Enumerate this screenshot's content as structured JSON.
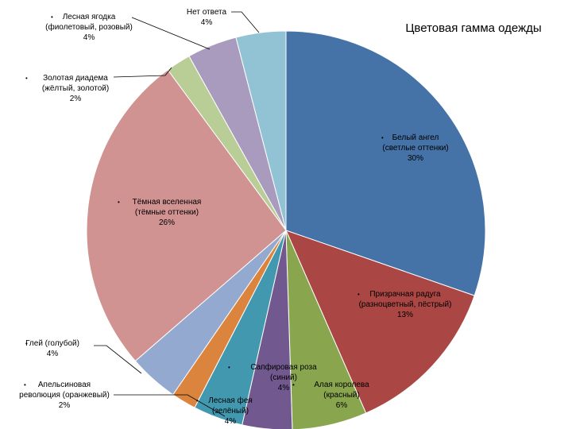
{
  "chart_data": {
    "type": "pie",
    "title": "Цветовая гамма одежды",
    "legend": "none",
    "slices": [
      {
        "label_lines": [
          "Белый ангел",
          "(светлые оттенки)",
          "30%"
        ],
        "value": 30,
        "color": "#4572a7"
      },
      {
        "label_lines": [
          "Призрачная радуга",
          "(разноцветный, пёстрый)",
          "13%"
        ],
        "value": 13,
        "color": "#aa4643"
      },
      {
        "label_lines": [
          "Алая королева",
          "(красный)",
          "6%"
        ],
        "value": 6,
        "color": "#89a54e"
      },
      {
        "label_lines": [
          "Сапфировая роза",
          "(синий)",
          "4%"
        ],
        "value": 4,
        "color": "#71588f"
      },
      {
        "label_lines": [
          "Лесная фея",
          "(зелёный)",
          "4%"
        ],
        "value": 4,
        "color": "#4198af"
      },
      {
        "label_lines": [
          "Апельсиновая",
          "революция (оранжевый)",
          "2%"
        ],
        "value": 2,
        "color": "#db843d"
      },
      {
        "label_lines": [
          "Глей (голубой)",
          "4%"
        ],
        "value": 4,
        "color": "#93a9cf"
      },
      {
        "label_lines": [
          "Тёмная вселенная",
          "(тёмные оттенки)",
          "26%"
        ],
        "value": 26,
        "color": "#d19392"
      },
      {
        "label_lines": [
          "Золотая диадема",
          "(жёлтый, золотой)",
          "2%"
        ],
        "value": 2,
        "color": "#b9cd96"
      },
      {
        "label_lines": [
          "Лесная ягодка",
          "(фиолетовый, розовый)",
          "4%"
        ],
        "value": 4,
        "color": "#a99bbd"
      },
      {
        "label_lines": [
          "Нет ответа",
          "4%"
        ],
        "value": 4,
        "color": "#92c3d5"
      }
    ]
  }
}
